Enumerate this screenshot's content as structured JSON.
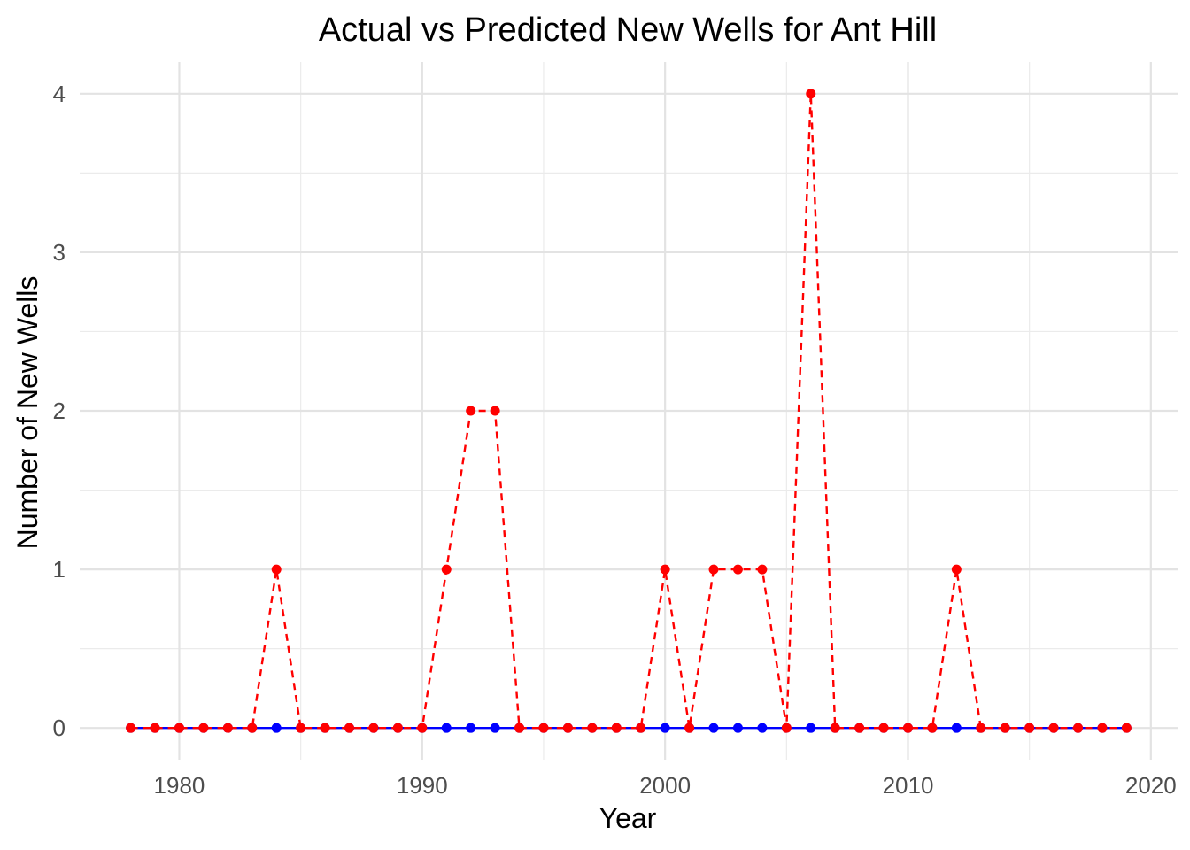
{
  "chart_data": {
    "type": "line",
    "title": "Actual vs Predicted New Wells for Ant Hill",
    "xlabel": "Year",
    "ylabel": "Number of New Wells",
    "xlim": [
      1975.9,
      2021.1
    ],
    "ylim": [
      -0.2,
      4.2
    ],
    "x_ticks": [
      1980,
      1990,
      2000,
      2010,
      2020
    ],
    "y_ticks": [
      0,
      1,
      2,
      3,
      4
    ],
    "grid": true,
    "legend": "none",
    "x": [
      1978,
      1979,
      1980,
      1981,
      1982,
      1983,
      1984,
      1985,
      1986,
      1987,
      1988,
      1989,
      1990,
      1991,
      1992,
      1993,
      1994,
      1995,
      1996,
      1997,
      1998,
      1999,
      2000,
      2001,
      2002,
      2003,
      2004,
      2005,
      2006,
      2007,
      2008,
      2009,
      2010,
      2011,
      2012,
      2013,
      2014,
      2015,
      2016,
      2017,
      2018,
      2019
    ],
    "series": [
      {
        "color": "#0000ff",
        "line_style": "solid",
        "values": [
          0,
          0,
          0,
          0,
          0,
          0,
          0,
          0,
          0,
          0,
          0,
          0,
          0,
          0,
          0,
          0,
          0,
          0,
          0,
          0,
          0,
          0,
          0,
          0,
          0,
          0,
          0,
          0,
          0,
          0,
          0,
          0,
          0,
          0,
          0,
          0,
          0,
          0,
          0,
          0,
          0,
          0
        ]
      },
      {
        "color": "#ff0000",
        "line_style": "dashed",
        "values": [
          0,
          0,
          0,
          0,
          0,
          0,
          1,
          0,
          0,
          0,
          0,
          0,
          0,
          1,
          2,
          2,
          0,
          0,
          0,
          0,
          0,
          0,
          1,
          0,
          1,
          1,
          1,
          0,
          4,
          0,
          0,
          0,
          0,
          0,
          1,
          0,
          0,
          0,
          0,
          0,
          0,
          0
        ]
      }
    ]
  }
}
